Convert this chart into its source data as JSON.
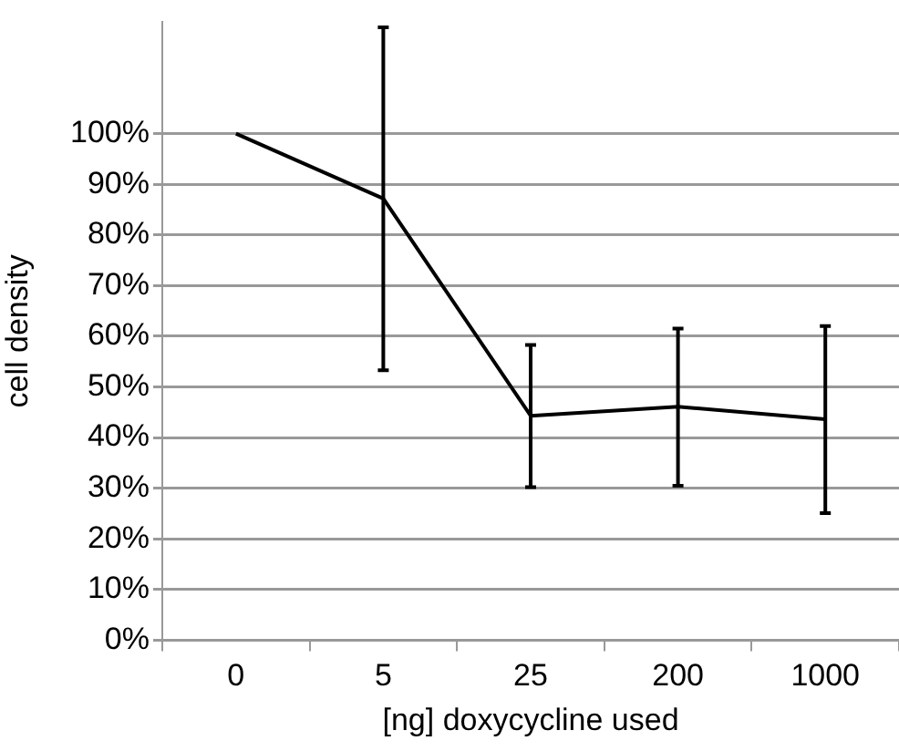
{
  "chart_data": {
    "type": "line",
    "xlabel": "[ng] doxycycline used",
    "ylabel": "cell density",
    "categories": [
      "0",
      "5",
      "25",
      "200",
      "1000"
    ],
    "series": [
      {
        "color": "#000000",
        "values": [
          100,
          87.2,
          44.3,
          46.1,
          43.6
        ],
        "errors": [
          null,
          [
            53.3,
            121
          ],
          [
            30.2,
            58.3
          ],
          [
            30.5,
            61.5
          ],
          [
            25.1,
            62.0
          ]
        ]
      }
    ],
    "ylim": [
      0,
      122
    ],
    "yticks": [
      {
        "value": 0,
        "label": "0%"
      },
      {
        "value": 10,
        "label": "10%"
      },
      {
        "value": 20,
        "label": "20%"
      },
      {
        "value": 30,
        "label": "30%"
      },
      {
        "value": 40,
        "label": "40%"
      },
      {
        "value": 50,
        "label": "50%"
      },
      {
        "value": 60,
        "label": "60%"
      },
      {
        "value": 70,
        "label": "70%"
      },
      {
        "value": 80,
        "label": "80%"
      },
      {
        "value": 90,
        "label": "90%"
      },
      {
        "value": 100,
        "label": "100%"
      }
    ],
    "grid": "y",
    "legend": false,
    "marker": "none",
    "line_style": "solid"
  }
}
